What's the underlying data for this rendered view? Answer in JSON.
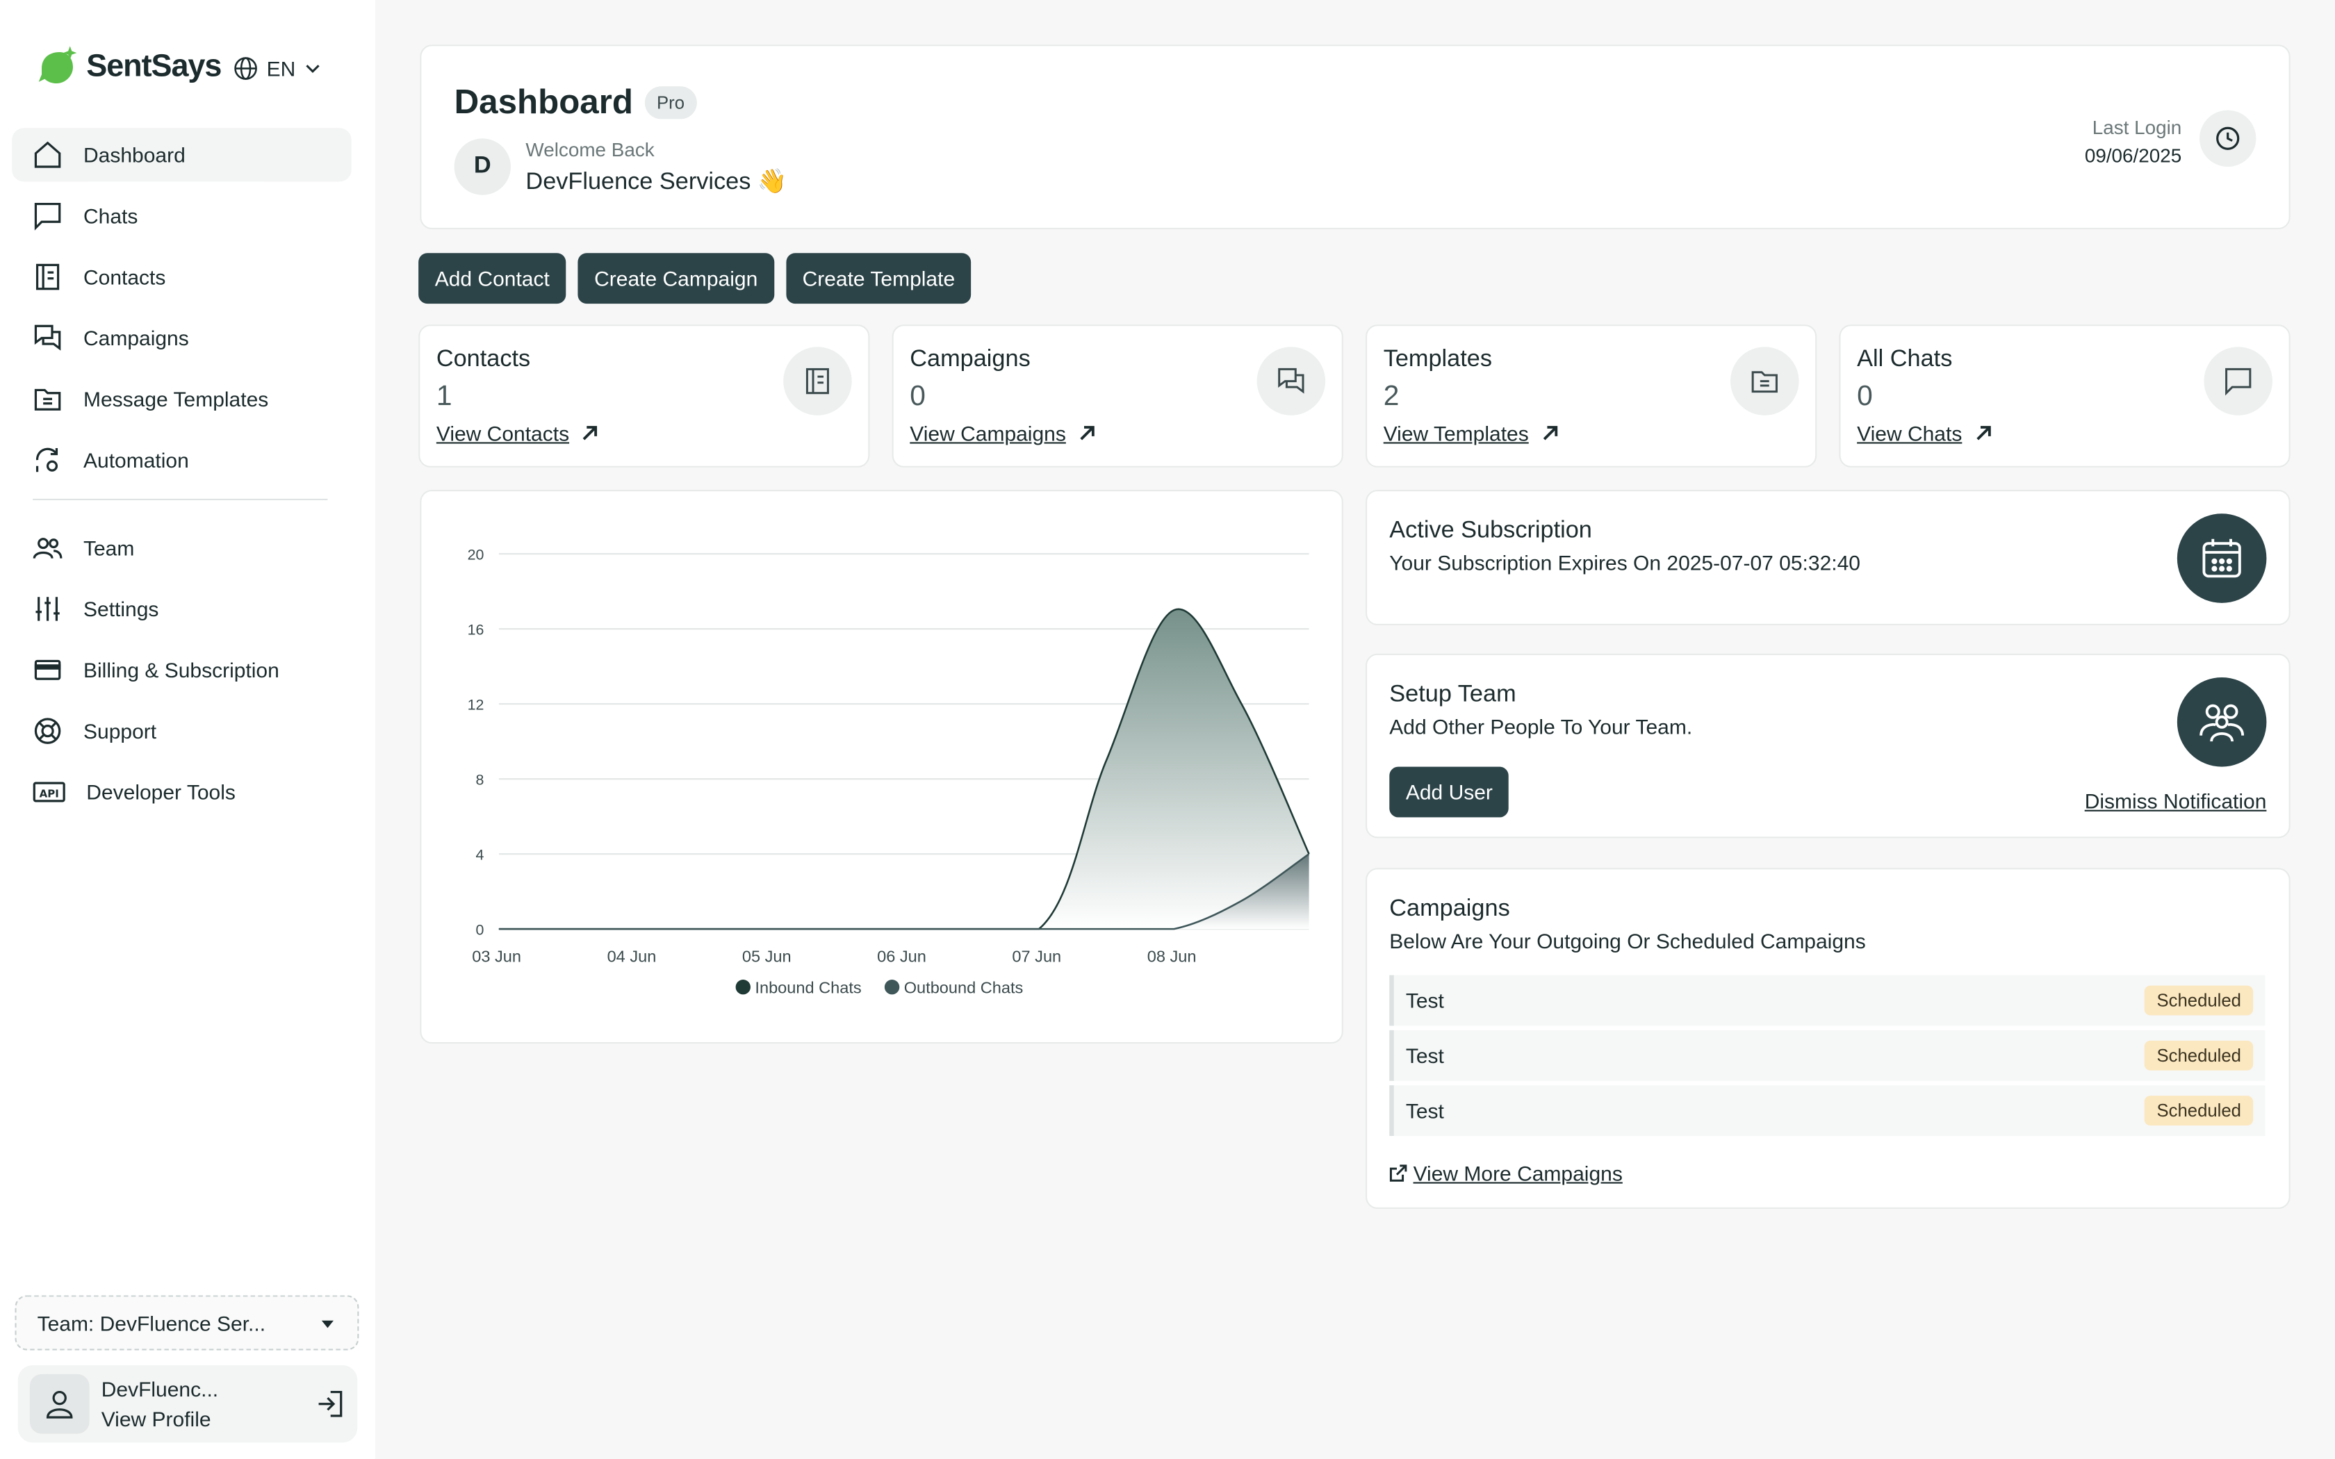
{
  "brand": {
    "name": "SentSays",
    "accent": "#5cbf4a"
  },
  "language": {
    "code": "EN"
  },
  "sidebar": {
    "items": [
      {
        "label": "Dashboard",
        "icon": "home-icon",
        "active": true
      },
      {
        "label": "Chats",
        "icon": "chat-icon"
      },
      {
        "label": "Contacts",
        "icon": "contacts-book-icon"
      },
      {
        "label": "Campaigns",
        "icon": "campaigns-icon"
      },
      {
        "label": "Message Templates",
        "icon": "folder-icon"
      },
      {
        "label": "Automation",
        "icon": "automation-icon"
      },
      {
        "label": "Team",
        "icon": "team-icon"
      },
      {
        "label": "Settings",
        "icon": "sliders-icon"
      },
      {
        "label": "Billing & Subscription",
        "icon": "card-icon"
      },
      {
        "label": "Support",
        "icon": "lifebuoy-icon"
      },
      {
        "label": "Developer Tools",
        "icon": "api-icon"
      }
    ],
    "team_select": "Team: DevFluence Ser...",
    "profile": {
      "name": "DevFluenc...",
      "link": "View Profile"
    }
  },
  "header": {
    "title": "Dashboard",
    "badge": "Pro",
    "avatar_initial": "D",
    "welcome_label": "Welcome Back",
    "welcome_name": "DevFluence Services 👋",
    "last_login_label": "Last Login",
    "last_login_date": "09/06/2025"
  },
  "actions": {
    "add_contact": "Add Contact",
    "create_campaign": "Create Campaign",
    "create_template": "Create Template"
  },
  "stats": [
    {
      "title": "Contacts",
      "value": "1",
      "link": "View Contacts",
      "icon": "contacts-book-icon"
    },
    {
      "title": "Campaigns",
      "value": "0",
      "link": "View Campaigns",
      "icon": "campaigns-icon"
    },
    {
      "title": "Templates",
      "value": "2",
      "link": "View Templates",
      "icon": "folder-icon"
    },
    {
      "title": "All Chats",
      "value": "0",
      "link": "View Chats",
      "icon": "chat-icon"
    }
  ],
  "chart_data": {
    "type": "area",
    "categories": [
      "03 Jun",
      "04 Jun",
      "05 Jun",
      "06 Jun",
      "07 Jun",
      "08 Jun"
    ],
    "ylim": [
      0,
      20
    ],
    "yticks": [
      0,
      4,
      8,
      12,
      16,
      20
    ],
    "x": [
      0,
      1,
      2,
      3,
      4,
      4.5,
      5,
      5.5,
      6
    ],
    "series": [
      {
        "name": "Inbound Chats",
        "color": "#1f3a35",
        "values": [
          0,
          0,
          0,
          0,
          0,
          9,
          17,
          12,
          4
        ]
      },
      {
        "name": "Outbound Chats",
        "color": "#3f5759",
        "values": [
          0,
          0,
          0,
          0,
          0,
          0,
          0,
          1.5,
          4
        ]
      }
    ],
    "legend": "bottom",
    "grid": true
  },
  "subscription": {
    "title": "Active Subscription",
    "text": "Your Subscription Expires On 2025-07-07 05:32:40"
  },
  "setup_team": {
    "title": "Setup Team",
    "text": "Add Other People To Your Team.",
    "button": "Add User",
    "dismiss": "Dismiss Notification"
  },
  "campaigns_panel": {
    "title": "Campaigns",
    "text": "Below Are Your Outgoing Or Scheduled Campaigns",
    "rows": [
      {
        "name": "Test",
        "status": "Scheduled"
      },
      {
        "name": "Test",
        "status": "Scheduled"
      },
      {
        "name": "Test",
        "status": "Scheduled"
      }
    ],
    "view_more": "View More Campaigns"
  }
}
